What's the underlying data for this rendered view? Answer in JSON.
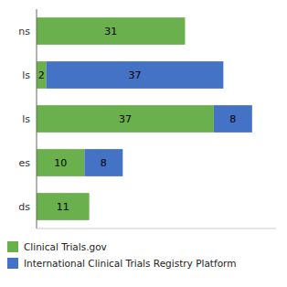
{
  "chart_data": {
    "type": "bar",
    "orientation": "horizontal",
    "stacked": true,
    "categories": [
      "ns",
      "ls",
      "ls",
      "es",
      "ds"
    ],
    "series": [
      {
        "name": "Clinical Trials.gov",
        "color": "#6ab04c",
        "values": [
          31,
          2,
          37,
          10,
          11
        ]
      },
      {
        "name": "International Clinical Trials Registry Platform",
        "color": "#4472c4",
        "values": [
          0,
          37,
          8,
          8,
          0
        ]
      }
    ],
    "xlim": [
      0,
      50
    ],
    "xticks": [],
    "data_labels": true,
    "tick_labels": "y",
    "grid": false,
    "legend": "bottom"
  }
}
